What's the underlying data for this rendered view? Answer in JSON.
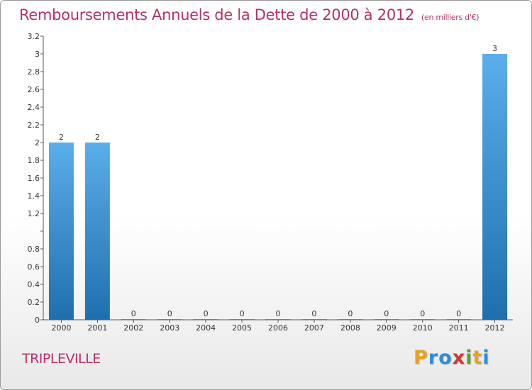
{
  "header": {
    "title": "Remboursements Annuels de la Dette de 2000 à 2012",
    "unit": "(en milliers d'€)"
  },
  "footer": {
    "city": "TRIPLEVILLE",
    "brand": [
      "P",
      "r",
      "o",
      "x",
      "i",
      "t",
      "i"
    ],
    "brand_colors": [
      "#e8a21c",
      "#2b8fd6",
      "#2b8fd6",
      "#d6362b",
      "#5aa52b",
      "#e8a21c",
      "#2b8fd6"
    ]
  },
  "colors": {
    "bar_light": "#5aaeea",
    "bar_dark": "#1f6fae",
    "text": "#b5306a"
  },
  "chart_data": {
    "type": "bar",
    "title": "Remboursements Annuels de la Dette de 2000 à 2012",
    "xlabel": "",
    "ylabel": "",
    "categories": [
      "2000",
      "2001",
      "2002",
      "2003",
      "2004",
      "2005",
      "2006",
      "2007",
      "2008",
      "2009",
      "2010",
      "2011",
      "2012"
    ],
    "values": [
      2,
      2,
      0,
      0,
      0,
      0,
      0,
      0,
      0,
      0,
      0,
      0,
      3
    ],
    "data_labels": [
      "2",
      "2",
      "0",
      "0",
      "0",
      "0",
      "0",
      "0",
      "0",
      "0",
      "0",
      "0",
      "3"
    ],
    "ylim": [
      0,
      3.2
    ],
    "yticks": [
      0,
      0.2,
      0.4,
      0.6,
      0.8,
      1,
      1.2,
      1.4,
      1.6,
      1.8,
      2,
      2.2,
      2.4,
      2.6,
      2.8,
      3,
      3.2
    ],
    "ytick_labels": [
      "0",
      "0.2",
      "0.4",
      "0.6",
      "0.8",
      "",
      "1.2",
      "1.4",
      "1.6",
      "1.8",
      "2",
      "2.2",
      "2.4",
      "2.6",
      "2.8",
      "3",
      "3.2"
    ],
    "grid": false,
    "legend": "none"
  }
}
